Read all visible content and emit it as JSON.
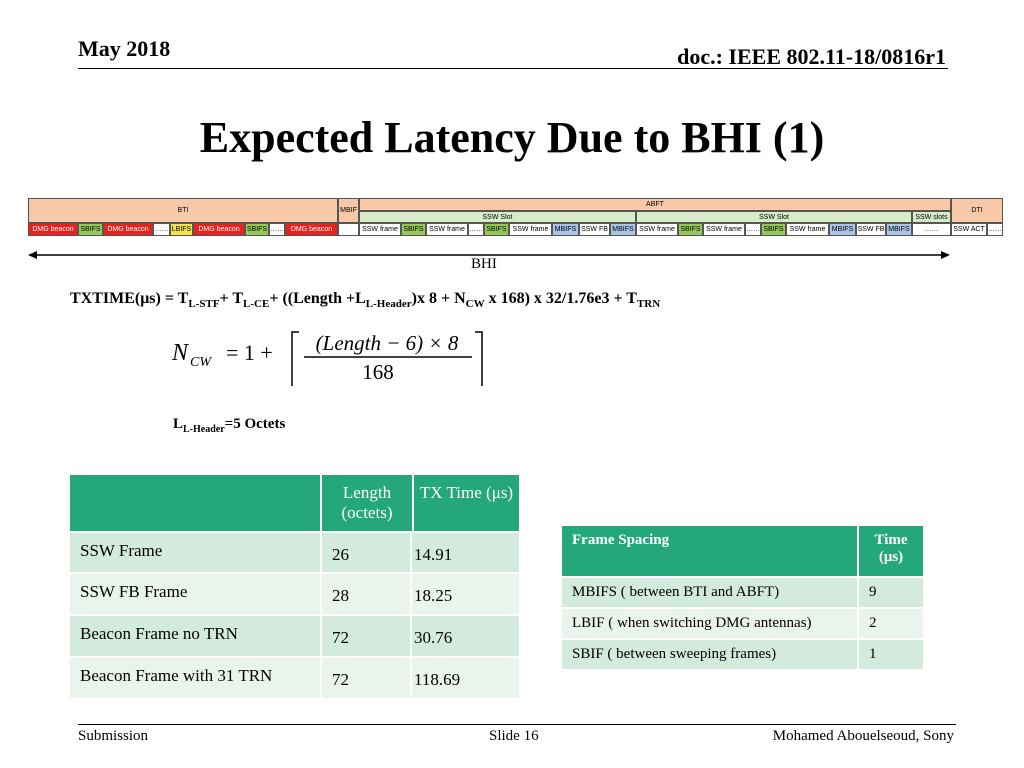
{
  "header": {
    "date": "May 2018",
    "doc_id": "doc.: IEEE 802.11-18/0816r1"
  },
  "title": "Expected Latency Due to BHI (1)",
  "timeline": {
    "bti_label": "BTI",
    "abft_label": "ABFT",
    "dti_label": "DTI",
    "mbif_label": "MBIF",
    "ssw_slot_label": "SSW Slot",
    "ssw_slots_label": "SSW slots",
    "dots": "……",
    "dmg_beacon": "DMG beacon",
    "sbifs": "SBIFS",
    "lbifs": "LBIFS",
    "mbifs": "MBIFS",
    "ssw_frame": "SSW frame",
    "ssw_fb": "SSW FB",
    "ssw_act": "SSW ACT",
    "bhi_label": "BHI",
    "colors": {
      "dmg_beacon": "#e8231e",
      "sbifs": "#93c95a",
      "lbifs": "#f6e34a",
      "mbifs": "#a9c4e6",
      "header": "#f7c9a8",
      "slot": "#d8ecc8"
    }
  },
  "formula": {
    "lhs": "TXTIME(μs) = T",
    "sub1": "L-STF",
    "p1": "+ T",
    "sub2": "L-CE",
    "p2": "+ ((Length +L",
    "sub3": "L-Header",
    "p3": ")x 8 + N",
    "sub4": "CW",
    "p4": " x 168) x 32/1.76e3 + T",
    "sub5": "TRN"
  },
  "ncw": {
    "lhs": "N",
    "lhs_sub": "CW",
    "eq": "=  1 +",
    "numerator": "(Length − 6) × 8",
    "denominator": "168"
  },
  "lheader": {
    "prefix": "L",
    "sub": "L-Header",
    "suffix": "=5 Octets"
  },
  "latency_table": {
    "headers": [
      "",
      "Length (octets)",
      "TX Time (μs)"
    ],
    "rows": [
      [
        "SSW Frame",
        "26",
        "14.91"
      ],
      [
        "SSW FB Frame",
        "28",
        "18.25"
      ],
      [
        "Beacon Frame no TRN",
        "72",
        "30.76"
      ],
      [
        "Beacon Frame with 31 TRN",
        "72",
        "118.69"
      ]
    ]
  },
  "spacing_table": {
    "headers": [
      "Frame Spacing",
      "Time (μs)"
    ],
    "rows": [
      [
        "MBIFS ( between BTI and ABFT)",
        "9"
      ],
      [
        "LBIF ( when switching DMG antennas)",
        "2"
      ],
      [
        "SBIF ( between sweeping frames)",
        "1"
      ]
    ]
  },
  "footer": {
    "left": "Submission",
    "center": "Slide 16",
    "right": "Mohamed Abouelseoud, Sony"
  }
}
